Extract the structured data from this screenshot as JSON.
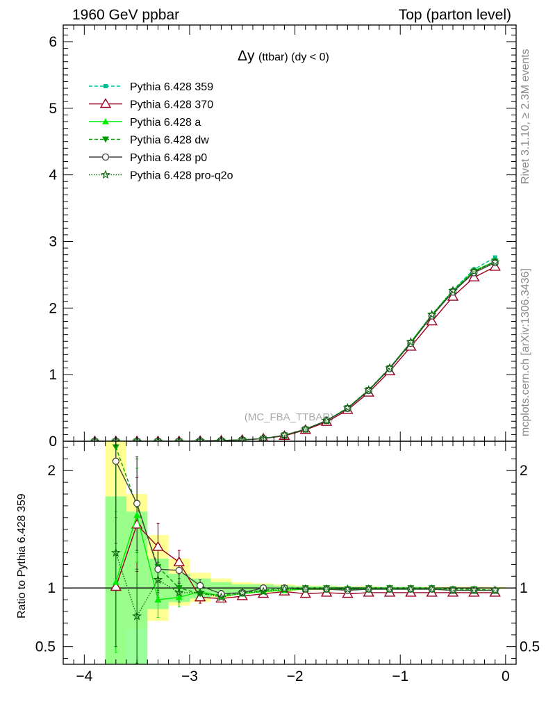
{
  "header": {
    "left": "1960 GeV ppbar",
    "right": "Top (parton level)"
  },
  "side_labels": {
    "rivet": "Rivet 3.1.10, ≥ 2.3M events",
    "mcplots": "mcplots.cern.ch [arXiv:1306.3436]"
  },
  "chart_data": [
    {
      "type": "line",
      "title_main": "Δy",
      "title_sub": "(ttbar) (dy < 0)",
      "watermark": "(MC_FBA_TTBAR)",
      "xlim": [
        -4.2,
        0.1
      ],
      "ylim": [
        0,
        6.25
      ],
      "yticks": [
        "0",
        "1",
        "2",
        "3",
        "4",
        "5",
        "6"
      ],
      "x": [
        -3.9,
        -3.7,
        -3.5,
        -3.3,
        -3.1,
        -2.9,
        -2.7,
        -2.5,
        -2.3,
        -2.1,
        -1.9,
        -1.7,
        -1.5,
        -1.3,
        -1.1,
        -0.9,
        -0.7,
        -0.5,
        -0.3,
        -0.1
      ],
      "series": [
        {
          "name": "Pythia 6.428 359",
          "color": "#00bf8f",
          "dash": "5,3",
          "marker": "square",
          "values": [
            0.0,
            0.0,
            0.0,
            0.0,
            0.0,
            0.005,
            0.01,
            0.02,
            0.04,
            0.09,
            0.18,
            0.31,
            0.5,
            0.77,
            1.1,
            1.49,
            1.9,
            2.27,
            2.58,
            2.76
          ]
        },
        {
          "name": "Pythia 6.428 370",
          "color": "#990022",
          "dash": "",
          "marker": "triangle-open",
          "values": [
            0.0,
            0.0,
            0.0,
            0.0,
            0.0,
            0.005,
            0.01,
            0.02,
            0.04,
            0.08,
            0.17,
            0.29,
            0.47,
            0.73,
            1.05,
            1.42,
            1.8,
            2.17,
            2.46,
            2.62
          ]
        },
        {
          "name": "Pythia 6.428 a",
          "color": "#00ee00",
          "dash": "",
          "marker": "triangle",
          "values": [
            0.0,
            0.0,
            0.0,
            0.0,
            0.0,
            0.005,
            0.01,
            0.02,
            0.04,
            0.09,
            0.18,
            0.31,
            0.5,
            0.77,
            1.1,
            1.49,
            1.9,
            2.26,
            2.56,
            2.7
          ]
        },
        {
          "name": "Pythia 6.428 dw",
          "color": "#009900",
          "dash": "5,3",
          "marker": "triangle-down",
          "values": [
            0.0,
            0.0,
            0.0,
            0.0,
            0.0,
            0.005,
            0.01,
            0.02,
            0.04,
            0.09,
            0.18,
            0.31,
            0.5,
            0.77,
            1.1,
            1.48,
            1.89,
            2.25,
            2.55,
            2.7
          ]
        },
        {
          "name": "Pythia 6.428 p0",
          "color": "#444444",
          "dash": "",
          "marker": "circle-open",
          "values": [
            0.0,
            0.0,
            0.0,
            0.0,
            0.0,
            0.005,
            0.01,
            0.02,
            0.04,
            0.09,
            0.18,
            0.31,
            0.49,
            0.76,
            1.09,
            1.47,
            1.88,
            2.24,
            2.53,
            2.68
          ]
        },
        {
          "name": "Pythia 6.428 pro-q2o",
          "color": "#116611",
          "dash": "1.5,2",
          "marker": "star-open",
          "values": [
            0.0,
            0.0,
            0.0,
            0.0,
            0.0,
            0.005,
            0.01,
            0.02,
            0.04,
            0.09,
            0.18,
            0.31,
            0.5,
            0.77,
            1.1,
            1.49,
            1.9,
            2.26,
            2.55,
            2.69
          ]
        }
      ]
    },
    {
      "type": "line",
      "ylabel": "Ratio to Pythia 6.428 359",
      "xlim": [
        -4.2,
        0.1
      ],
      "ylim": [
        0.35,
        2.25
      ],
      "yticks": [
        "0.5",
        "1",
        "2"
      ],
      "xticks": [
        "−4",
        "−3",
        "−2",
        "−1",
        "0"
      ],
      "x": [
        -3.7,
        -3.5,
        -3.3,
        -3.1,
        -2.9,
        -2.7,
        -2.5,
        -2.3,
        -2.1,
        -1.9,
        -1.7,
        -1.5,
        -1.3,
        -1.1,
        -0.9,
        -0.7,
        -0.5,
        -0.3,
        -0.1
      ],
      "band_edges": [
        -3.8,
        -3.6,
        -3.4,
        -3.2,
        -3.0,
        -2.8,
        -2.6,
        -2.4,
        -2.2,
        -2.0,
        -1.8,
        -1.6,
        -1.4,
        -1.2,
        -1.0,
        -0.8,
        -0.6,
        -0.4,
        -0.2,
        0.0
      ],
      "band_outer": [
        [
          0.35,
          2.25
        ],
        [
          0.65,
          1.8
        ],
        [
          0.72,
          1.45
        ],
        [
          0.85,
          1.25
        ],
        [
          0.88,
          1.13
        ],
        [
          0.92,
          1.08
        ],
        [
          0.95,
          1.05
        ],
        [
          0.96,
          1.04
        ],
        [
          0.97,
          1.03
        ],
        [
          0.98,
          1.02
        ],
        [
          0.98,
          1.02
        ],
        [
          0.985,
          1.015
        ],
        [
          0.985,
          1.015
        ],
        [
          0.99,
          1.01
        ],
        [
          0.99,
          1.01
        ],
        [
          0.99,
          1.01
        ],
        [
          0.99,
          1.01
        ],
        [
          0.99,
          1.01
        ],
        [
          0.99,
          1.01
        ]
      ],
      "band_inner": [
        [
          0.35,
          1.78
        ],
        [
          0.35,
          1.65
        ],
        [
          0.82,
          1.25
        ],
        [
          0.88,
          1.12
        ],
        [
          0.91,
          1.08
        ],
        [
          0.94,
          1.05
        ],
        [
          0.96,
          1.03
        ],
        [
          0.97,
          1.03
        ],
        [
          0.98,
          1.02
        ],
        [
          0.985,
          1.015
        ],
        [
          0.985,
          1.015
        ],
        [
          0.99,
          1.01
        ],
        [
          0.99,
          1.01
        ],
        [
          0.99,
          1.01
        ],
        [
          0.99,
          1.01
        ],
        [
          0.995,
          1.005
        ],
        [
          0.995,
          1.005
        ],
        [
          0.995,
          1.005
        ],
        [
          0.995,
          1.005
        ]
      ],
      "series": [
        {
          "name": "Pythia 6.428 370",
          "color": "#990022",
          "dash": "",
          "marker": "triangle-open",
          "values": [
            1.01,
            1.54,
            1.35,
            1.22,
            0.92,
            0.91,
            0.93,
            0.95,
            0.97,
            0.95,
            0.96,
            0.95,
            0.96,
            0.96,
            0.96,
            0.96,
            0.96,
            0.96,
            0.96
          ],
          "errors": [
            0.0,
            0.4,
            0.2,
            0.1,
            0.05,
            0.03,
            0.02,
            0.01,
            0.01,
            0.01,
            0.01,
            0.01,
            0.01,
            0.01,
            0.01,
            0.01,
            0.01,
            0.01,
            0.01
          ]
        },
        {
          "name": "Pythia 6.428 a",
          "color": "#00ee00",
          "dash": "",
          "marker": "triangle",
          "values": [
            1.05,
            1.62,
            0.9,
            0.92,
            0.97,
            0.93,
            0.95,
            0.97,
            0.98,
            0.99,
            0.99,
            0.99,
            0.99,
            0.99,
            0.99,
            0.99,
            0.98,
            0.98,
            0.98
          ],
          "errors": [
            0.6,
            0.4,
            0.15,
            0.08,
            0.05,
            0.03,
            0.02,
            0.01,
            0.01,
            0.01,
            0.01,
            0.01,
            0.01,
            0.01,
            0.01,
            0.01,
            0.01,
            0.01,
            0.01
          ]
        },
        {
          "name": "Pythia 6.428 dw",
          "color": "#009900",
          "dash": "5,3",
          "marker": "triangle-down",
          "values": [
            2.2,
            1.7,
            1.18,
            1.0,
            0.95,
            0.94,
            0.96,
            0.98,
            1.0,
            1.0,
            1.0,
            0.99,
            1.0,
            1.0,
            1.0,
            1.0,
            0.99,
            0.99,
            0.98
          ],
          "errors": [
            0.6,
            0.4,
            0.2,
            0.08,
            0.05,
            0.03,
            0.02,
            0.01,
            0.01,
            0.01,
            0.01,
            0.01,
            0.01,
            0.01,
            0.01,
            0.01,
            0.01,
            0.01,
            0.01
          ]
        },
        {
          "name": "Pythia 6.428 p0",
          "color": "#444444",
          "dash": "",
          "marker": "circle-open",
          "values": [
            2.08,
            1.72,
            1.16,
            1.15,
            1.02,
            0.95,
            0.96,
            1.0,
            1.0,
            0.99,
            0.99,
            0.98,
            0.99,
            0.99,
            0.99,
            0.99,
            0.98,
            0.98,
            0.98
          ],
          "errors": [
            0.7,
            0.4,
            0.2,
            0.1,
            0.05,
            0.03,
            0.02,
            0.01,
            0.01,
            0.01,
            0.01,
            0.01,
            0.01,
            0.01,
            0.01,
            0.01,
            0.01,
            0.01,
            0.01
          ]
        },
        {
          "name": "Pythia 6.428 pro-q2o",
          "color": "#116611",
          "dash": "1.5,2",
          "marker": "star-open",
          "values": [
            1.3,
            0.76,
            1.07,
            0.96,
            0.96,
            0.92,
            0.96,
            0.97,
            0.99,
            0.99,
            0.99,
            0.99,
            0.99,
            0.99,
            0.99,
            0.99,
            0.98,
            0.98,
            0.98
          ],
          "errors": [
            0.8,
            0.4,
            0.15,
            0.08,
            0.05,
            0.03,
            0.02,
            0.01,
            0.01,
            0.01,
            0.01,
            0.01,
            0.01,
            0.01,
            0.01,
            0.01,
            0.01,
            0.01,
            0.01
          ]
        }
      ]
    }
  ]
}
